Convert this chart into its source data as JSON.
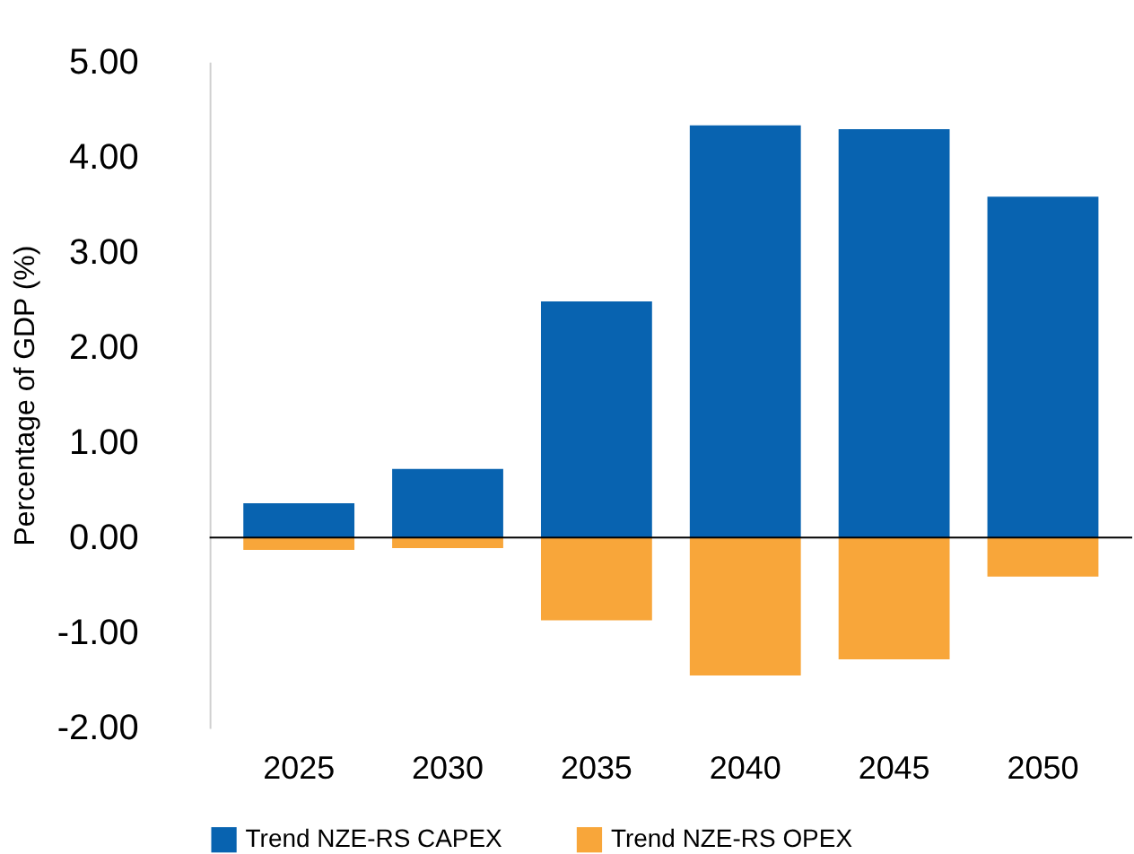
{
  "chart_data": {
    "type": "bar",
    "stacked": true,
    "ylabel": "Percentage of GDP (%)",
    "categories": [
      "2025",
      "2030",
      "2035",
      "2040",
      "2045",
      "2050"
    ],
    "series": [
      {
        "name": "Trend NZE-RS CAPEX",
        "color": "#0863b0",
        "values": [
          0.36,
          0.72,
          2.48,
          4.33,
          4.29,
          3.58
        ]
      },
      {
        "name": "Trend NZE-RS OPEX",
        "color": "#f8a63a",
        "values": [
          -0.13,
          -0.11,
          -0.87,
          -1.45,
          -1.28,
          -0.41
        ]
      }
    ],
    "ylim": [
      -2,
      5
    ],
    "yticks": [
      {
        "value": -2,
        "label": "-2.00"
      },
      {
        "value": -1,
        "label": "-1.00"
      },
      {
        "value": 0,
        "label": "0.00"
      },
      {
        "value": 1,
        "label": "1.00"
      },
      {
        "value": 2,
        "label": "2.00"
      },
      {
        "value": 3,
        "label": "3.00"
      },
      {
        "value": 4,
        "label": "4.00"
      },
      {
        "value": 5,
        "label": "5.00"
      }
    ],
    "ref_lines": [
      {
        "axis": "y",
        "value": 0,
        "color": "#000000"
      }
    ],
    "grid": false,
    "legend": "bottom"
  }
}
